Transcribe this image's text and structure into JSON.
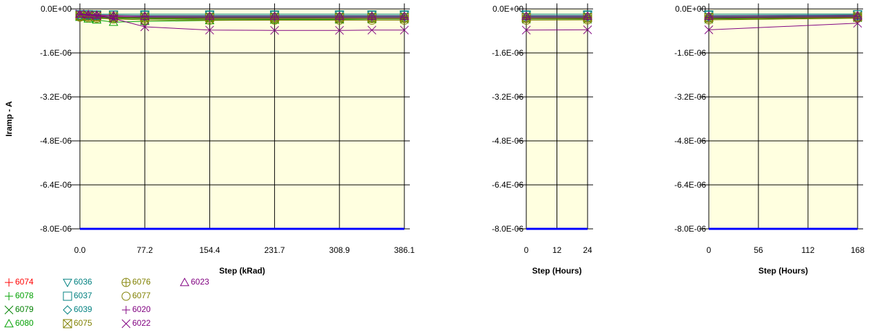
{
  "chart_data": [
    {
      "type": "line",
      "ylabel": "Iramp - A",
      "xlabel": "Step (kRad)",
      "ylim": [
        -8e-06,
        0
      ],
      "yticks": [
        "0.0E+00",
        "-1.6E-06",
        "-3.2E-06",
        "-4.8E-06",
        "-6.4E-06",
        "-8.0E-06"
      ],
      "xlim": [
        0,
        386.1
      ],
      "xticks": [
        "0.0",
        "77.2",
        "154.4",
        "231.7",
        "308.9",
        "386.1"
      ],
      "x": [
        0,
        10,
        20,
        40,
        77.2,
        154.4,
        231.7,
        308.9,
        347.5,
        386.1
      ],
      "series": [
        {
          "name": "6074",
          "values": [
            -2e-07,
            -2e-07,
            -2.3e-07,
            -2.4e-07,
            -2.5e-07,
            -2.5e-07,
            -2.5e-07,
            -2.5e-07,
            -2.5e-07,
            -2.5e-07
          ]
        },
        {
          "name": "6078",
          "values": [
            -2.5e-07,
            -2.6e-07,
            -2.8e-07,
            -3e-07,
            -3.2e-07,
            -3.3e-07,
            -3.3e-07,
            -3.2e-07,
            -3.1e-07,
            -3.1e-07
          ]
        },
        {
          "name": "6079",
          "values": [
            -2.8e-07,
            -3e-07,
            -3.2e-07,
            -3.4e-07,
            -3.6e-07,
            -3.8e-07,
            -3.8e-07,
            -3.8e-07,
            -3.7e-07,
            -3.7e-07
          ]
        },
        {
          "name": "6080",
          "values": [
            -3e-07,
            -3.6e-07,
            -4e-07,
            -4.8e-07,
            -4.5e-07,
            -4.2e-07,
            -4e-07,
            -3.8e-07,
            -3.6e-07,
            -3.5e-07
          ]
        },
        {
          "name": "6036",
          "values": [
            -1.8e-07,
            -1.8e-07,
            -1.9e-07,
            -1.9e-07,
            -1.9e-07,
            -1.9e-07,
            -1.9e-07,
            -1.9e-07,
            -1.9e-07,
            -1.9e-07
          ]
        },
        {
          "name": "6037",
          "values": [
            -2.2e-07,
            -2.2e-07,
            -2.3e-07,
            -2.3e-07,
            -2.4e-07,
            -2.4e-07,
            -2.4e-07,
            -2.4e-07,
            -2.4e-07,
            -2.4e-07
          ]
        },
        {
          "name": "6039",
          "values": [
            -2.6e-07,
            -2.6e-07,
            -2.7e-07,
            -2.8e-07,
            -2.9e-07,
            -2.9e-07,
            -2.9e-07,
            -2.9e-07,
            -2.9e-07,
            -2.9e-07
          ]
        },
        {
          "name": "6075",
          "values": [
            -2.4e-07,
            -2.5e-07,
            -2.6e-07,
            -2.8e-07,
            -3e-07,
            -3.1e-07,
            -3.1e-07,
            -3.1e-07,
            -3.1e-07,
            -3.1e-07
          ]
        },
        {
          "name": "6076",
          "values": [
            -2.7e-07,
            -2.8e-07,
            -3e-07,
            -3.2e-07,
            -3.4e-07,
            -3.5e-07,
            -3.5e-07,
            -3.5e-07,
            -3.5e-07,
            -3.5e-07
          ]
        },
        {
          "name": "6077",
          "values": [
            -3e-07,
            -3.2e-07,
            -3.4e-07,
            -3.7e-07,
            -4e-07,
            -4.1e-07,
            -4.1e-07,
            -4.1e-07,
            -4.1e-07,
            -4.1e-07
          ]
        },
        {
          "name": "6020",
          "values": [
            -2e-07,
            -2.2e-07,
            -2.5e-07,
            -2.8e-07,
            -3e-07,
            -3.2e-07,
            -3.2e-07,
            -3.2e-07,
            -3.2e-07,
            -3.2e-07
          ]
        },
        {
          "name": "6022",
          "values": [
            -1.8e-07,
            -2.1e-07,
            -2.5e-07,
            -3.5e-07,
            -6.5e-07,
            -7.7e-07,
            -7.8e-07,
            -7.8e-07,
            -7.7e-07,
            -7.7e-07
          ]
        },
        {
          "name": "6023",
          "values": [
            -1.9e-07,
            -2e-07,
            -2.2e-07,
            -2.4e-07,
            -2.6e-07,
            -2.6e-07,
            -2.6e-07,
            -2.6e-07,
            -2.6e-07,
            -2.6e-07
          ]
        },
        {
          "name": "",
          "values": [
            -8e-06,
            -8e-06,
            -8e-06,
            -8e-06,
            -8e-06,
            -8e-06,
            -8e-06,
            -8e-06,
            -8e-06,
            -8e-06
          ]
        }
      ]
    },
    {
      "type": "line",
      "xlabel": "Step (Hours)",
      "ylim": [
        -8e-06,
        0
      ],
      "yticks": [
        "0.0E+00",
        "-1.6E-06",
        "-3.2E-06",
        "-4.8E-06",
        "-6.4E-06",
        "-8.0E-06"
      ],
      "xlim": [
        0,
        24
      ],
      "xticks": [
        "0",
        "12",
        "24"
      ],
      "x": [
        0,
        24
      ],
      "series": [
        {
          "name": "6074",
          "values": [
            -2.5e-07,
            -2.5e-07
          ]
        },
        {
          "name": "6078",
          "values": [
            -3.1e-07,
            -3.1e-07
          ]
        },
        {
          "name": "6079",
          "values": [
            -3.7e-07,
            -3.7e-07
          ]
        },
        {
          "name": "6080",
          "values": [
            -3.5e-07,
            -3.4e-07
          ]
        },
        {
          "name": "6036",
          "values": [
            -1.9e-07,
            -1.9e-07
          ]
        },
        {
          "name": "6037",
          "values": [
            -2.4e-07,
            -2.4e-07
          ]
        },
        {
          "name": "6039",
          "values": [
            -2.9e-07,
            -2.9e-07
          ]
        },
        {
          "name": "6075",
          "values": [
            -3.1e-07,
            -3.1e-07
          ]
        },
        {
          "name": "6076",
          "values": [
            -3.5e-07,
            -3.5e-07
          ]
        },
        {
          "name": "6077",
          "values": [
            -4.1e-07,
            -4e-07
          ]
        },
        {
          "name": "6020",
          "values": [
            -3.2e-07,
            -3.2e-07
          ]
        },
        {
          "name": "6022",
          "values": [
            -7.7e-07,
            -7.6e-07
          ]
        },
        {
          "name": "6023",
          "values": [
            -2.6e-07,
            -2.6e-07
          ]
        },
        {
          "name": "",
          "values": [
            -8e-06,
            -8e-06
          ]
        }
      ]
    },
    {
      "type": "line",
      "xlabel": "Step (Hours)",
      "ylim": [
        -8e-06,
        0
      ],
      "yticks": [
        "0.0E+00",
        "-1.6E-06",
        "-3.2E-06",
        "-4.8E-06",
        "-6.4E-06",
        "-8.0E-06"
      ],
      "xlim": [
        0,
        168
      ],
      "xticks": [
        "0",
        "56",
        "112",
        "168"
      ],
      "x": [
        0,
        168
      ],
      "series": [
        {
          "name": "6074",
          "values": [
            -2.5e-07,
            -2.2e-07
          ]
        },
        {
          "name": "6078",
          "values": [
            -3.1e-07,
            -2.9e-07
          ]
        },
        {
          "name": "6079",
          "values": [
            -3.7e-07,
            -3.2e-07
          ]
        },
        {
          "name": "6080",
          "values": [
            -3.4e-07,
            -3e-07
          ]
        },
        {
          "name": "6036",
          "values": [
            -1.9e-07,
            -1.8e-07
          ]
        },
        {
          "name": "6037",
          "values": [
            -2.4e-07,
            -2.2e-07
          ]
        },
        {
          "name": "6039",
          "values": [
            -2.9e-07,
            -2.6e-07
          ]
        },
        {
          "name": "6075",
          "values": [
            -3.1e-07,
            -2.8e-07
          ]
        },
        {
          "name": "6076",
          "values": [
            -3.5e-07,
            -3.1e-07
          ]
        },
        {
          "name": "6077",
          "values": [
            -4e-07,
            -3.4e-07
          ]
        },
        {
          "name": "6020",
          "values": [
            -3.2e-07,
            -2.9e-07
          ]
        },
        {
          "name": "6022",
          "values": [
            -7.6e-07,
            -5.2e-07
          ]
        },
        {
          "name": "6023",
          "values": [
            -2.6e-07,
            -2.4e-07
          ]
        },
        {
          "name": "",
          "values": [
            -8e-06,
            -8e-06
          ]
        }
      ]
    }
  ],
  "styles": {
    "6074": {
      "color": "#ff0000",
      "marker": "plus"
    },
    "6078": {
      "color": "#00a000",
      "marker": "plus"
    },
    "6079": {
      "color": "#008000",
      "marker": "x"
    },
    "6080": {
      "color": "#00a000",
      "marker": "triangle-up"
    },
    "6036": {
      "color": "#008080",
      "marker": "triangle-down"
    },
    "6037": {
      "color": "#008080",
      "marker": "square"
    },
    "6039": {
      "color": "#008080",
      "marker": "diamond"
    },
    "6075": {
      "color": "#808000",
      "marker": "square-x"
    },
    "6076": {
      "color": "#808000",
      "marker": "circle-plus"
    },
    "6077": {
      "color": "#808000",
      "marker": "circle"
    },
    "6020": {
      "color": "#800080",
      "marker": "plus"
    },
    "6022": {
      "color": "#800080",
      "marker": "x"
    },
    "6023": {
      "color": "#800080",
      "marker": "triangle-up"
    },
    "limit_line": "#0000ff",
    "plot_bg": "#ffffe0"
  },
  "legend": [
    [
      "6074",
      "6078",
      "6079",
      "6080"
    ],
    [
      "6036",
      "6037",
      "6039",
      "6075"
    ],
    [
      "6076",
      "6077",
      "6020",
      "6022"
    ],
    [
      "6023"
    ]
  ]
}
